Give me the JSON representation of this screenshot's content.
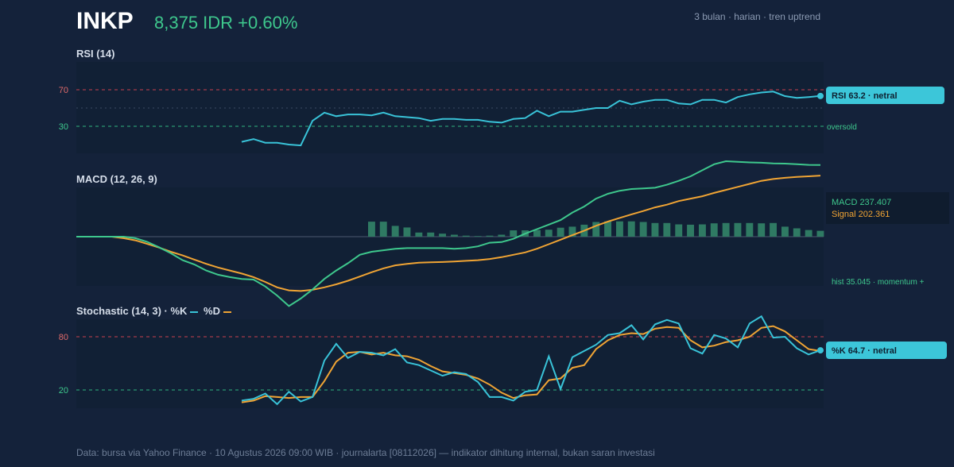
{
  "header": {
    "ticker": "INKP",
    "price_text": "8,375 IDR +0.60%",
    "subtitle": "3 bulan · harian · tren uptrend"
  },
  "colors": {
    "background": "#14223a",
    "panel": "#112035",
    "rsi_line": "#39c3d8",
    "macd_line": "#3ec88d",
    "signal_line": "#f0a434",
    "hist_bar": "#2f7a63",
    "overbought": "#c9404f",
    "oversold": "#2fb37f",
    "percent_k": "#39c3d8",
    "percent_d": "#f0a434"
  },
  "rsi": {
    "title": "RSI (14)",
    "tick_70": "70",
    "tick_30": "30",
    "badge": "RSI 63.2 · netral",
    "oversold_label": "oversold"
  },
  "macd": {
    "title": "MACD (12, 26, 9)",
    "macd_label": "MACD 237.407",
    "signal_label": "Signal 202.361",
    "hist_label": "hist 35.045 · momentum +"
  },
  "stoch": {
    "title": "Stochastic (14, 3) · %K",
    "d_label": " %D",
    "tick_80": "80",
    "tick_20": "20",
    "badge": "%K 64.7 · netral"
  },
  "footer": "Data: bursa via Yahoo Finance · 10 Agustus 2026 09:00 WIB · journalarta [08112026] — indikator dihitung internal, bukan saran investasi",
  "chart_data": [
    {
      "type": "line",
      "title": "RSI (14)",
      "x": [
        0,
        1,
        2,
        3,
        4,
        5,
        6,
        7,
        8,
        9,
        10,
        11,
        12,
        13,
        14,
        15,
        16,
        17,
        18,
        19,
        20,
        21,
        22,
        23,
        24,
        25,
        26,
        27,
        28,
        29,
        30,
        31,
        32,
        33,
        34,
        35,
        36,
        37,
        38,
        39,
        40,
        41,
        42,
        43,
        44,
        45,
        46,
        47,
        48,
        49,
        50,
        51,
        52,
        53,
        54,
        55,
        56,
        57,
        58,
        59,
        60,
        61,
        62,
        63
      ],
      "series": [
        {
          "name": "RSI",
          "values": [
            null,
            null,
            null,
            null,
            null,
            null,
            null,
            null,
            null,
            null,
            null,
            null,
            null,
            null,
            13,
            16,
            12,
            12,
            10,
            9,
            36,
            45,
            41,
            43,
            43,
            42,
            45,
            41,
            40,
            39,
            36,
            38,
            38,
            37,
            37,
            35,
            34,
            38,
            39,
            47,
            41,
            46,
            46,
            48,
            50,
            50,
            58,
            54,
            57,
            59,
            59,
            55,
            54,
            59,
            59,
            56,
            62,
            65,
            67,
            68,
            63,
            61,
            62,
            63.2
          ]
        }
      ],
      "levels": [
        70,
        30
      ],
      "ylim": [
        0,
        100
      ]
    },
    {
      "type": "line",
      "title": "MACD (12, 26, 9)",
      "x": [
        0,
        1,
        2,
        3,
        4,
        5,
        6,
        7,
        8,
        9,
        10,
        11,
        12,
        13,
        14,
        15,
        16,
        17,
        18,
        19,
        20,
        21,
        22,
        23,
        24,
        25,
        26,
        27,
        28,
        29,
        30,
        31,
        32,
        33,
        34,
        35,
        36,
        37,
        38,
        39,
        40,
        41,
        42,
        43,
        44,
        45,
        46,
        47,
        48,
        49,
        50,
        51,
        52,
        53,
        54,
        55,
        56,
        57,
        58,
        59,
        60,
        61,
        62,
        63
      ],
      "series": [
        {
          "name": "MACD",
          "values": [
            0,
            0,
            0,
            0,
            0,
            -5,
            -17,
            -35,
            -55,
            -78,
            -92,
            -112,
            -126,
            -134,
            -140,
            -142,
            -165,
            -195,
            -230,
            -205,
            -175,
            -140,
            -112,
            -88,
            -60,
            -50,
            -45,
            -40,
            -38,
            -38,
            -38,
            -38,
            -40,
            -38,
            -32,
            -20,
            -18,
            -7,
            10,
            25,
            40,
            55,
            80,
            100,
            126,
            142,
            152,
            158,
            160,
            162,
            172,
            185,
            200,
            220,
            240,
            250,
            248,
            246,
            245,
            243,
            242,
            240,
            238,
            237.407
          ]
        },
        {
          "name": "Signal",
          "values": [
            0,
            0,
            0,
            0,
            -5,
            -12,
            -24,
            -36,
            -50,
            -62,
            -76,
            -90,
            -102,
            -112,
            -122,
            -134,
            -150,
            -168,
            -178,
            -180,
            -176,
            -168,
            -158,
            -146,
            -132,
            -118,
            -105,
            -95,
            -90,
            -86,
            -85,
            -84,
            -82,
            -80,
            -78,
            -74,
            -68,
            -60,
            -52,
            -40,
            -25,
            -10,
            5,
            20,
            36,
            50,
            62,
            74,
            85,
            97,
            106,
            118,
            126,
            134,
            145,
            155,
            165,
            175,
            185,
            191,
            195,
            198,
            200,
            202.361
          ]
        }
      ],
      "histogram": [
        null,
        null,
        null,
        null,
        null,
        null,
        null,
        null,
        null,
        null,
        null,
        null,
        null,
        null,
        null,
        null,
        null,
        null,
        null,
        null,
        null,
        null,
        null,
        null,
        null,
        90,
        90,
        65,
        55,
        25,
        25,
        18,
        12,
        6,
        4,
        6,
        12,
        38,
        38,
        40,
        42,
        54,
        60,
        72,
        88,
        92,
        92,
        92,
        88,
        82,
        82,
        74,
        72,
        74,
        80,
        82,
        82,
        82,
        80,
        82,
        60,
        50,
        40,
        35.045
      ],
      "ylim": [
        -280,
        280
      ]
    },
    {
      "type": "line",
      "title": "Stochastic (14, 3)",
      "x": [
        0,
        1,
        2,
        3,
        4,
        5,
        6,
        7,
        8,
        9,
        10,
        11,
        12,
        13,
        14,
        15,
        16,
        17,
        18,
        19,
        20,
        21,
        22,
        23,
        24,
        25,
        26,
        27,
        28,
        29,
        30,
        31,
        32,
        33,
        34,
        35,
        36,
        37,
        38,
        39,
        40,
        41,
        42,
        43,
        44,
        45,
        46,
        47,
        48,
        49,
        50,
        51,
        52,
        53,
        54,
        55,
        56,
        57,
        58,
        59,
        60,
        61,
        62,
        63
      ],
      "series": [
        {
          "name": "%K",
          "values": [
            null,
            null,
            null,
            null,
            null,
            null,
            null,
            null,
            null,
            null,
            null,
            null,
            null,
            null,
            8,
            10,
            16,
            4,
            18,
            7,
            12,
            53,
            72,
            56,
            63,
            62,
            59,
            66,
            51,
            48,
            42,
            36,
            40,
            38,
            29,
            12,
            12,
            8,
            18,
            20,
            58,
            21,
            57,
            64,
            71,
            82,
            84,
            93,
            77,
            94,
            99,
            95,
            67,
            61,
            82,
            78,
            68,
            95,
            103,
            79,
            80,
            67,
            60,
            64.7
          ]
        },
        {
          "name": "%D",
          "values": [
            null,
            null,
            null,
            null,
            null,
            null,
            null,
            null,
            null,
            null,
            null,
            null,
            null,
            null,
            6,
            8,
            13,
            12,
            11,
            12,
            12,
            30,
            52,
            62,
            63,
            60,
            62,
            59,
            58,
            54,
            47,
            41,
            39,
            37,
            33,
            26,
            17,
            11,
            14,
            15,
            31,
            33,
            45,
            48,
            66,
            76,
            82,
            84,
            83,
            89,
            91,
            90,
            76,
            68,
            70,
            74,
            76,
            80,
            90,
            92,
            86,
            76,
            66,
            64
          ]
        }
      ],
      "levels": [
        80,
        20
      ],
      "ylim": [
        0,
        100
      ]
    }
  ]
}
